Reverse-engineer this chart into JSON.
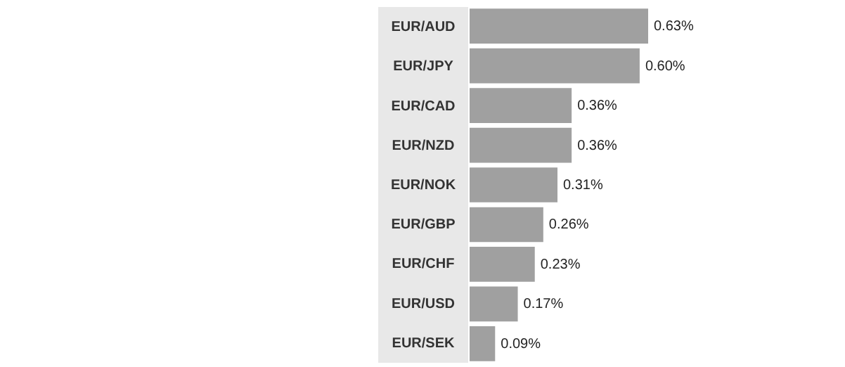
{
  "chart_data": {
    "type": "bar",
    "orientation": "horizontal",
    "categories": [
      "EUR/AUD",
      "EUR/JPY",
      "EUR/CAD",
      "EUR/NZD",
      "EUR/NOK",
      "EUR/GBP",
      "EUR/CHF",
      "EUR/USD",
      "EUR/SEK"
    ],
    "values": [
      0.63,
      0.6,
      0.36,
      0.36,
      0.31,
      0.26,
      0.23,
      0.17,
      0.09
    ],
    "value_labels": [
      "0.63%",
      "0.60%",
      "0.36%",
      "0.36%",
      "0.31%",
      "0.26%",
      "0.23%",
      "0.17%",
      "0.09%"
    ],
    "color": "#a0a0a0"
  }
}
